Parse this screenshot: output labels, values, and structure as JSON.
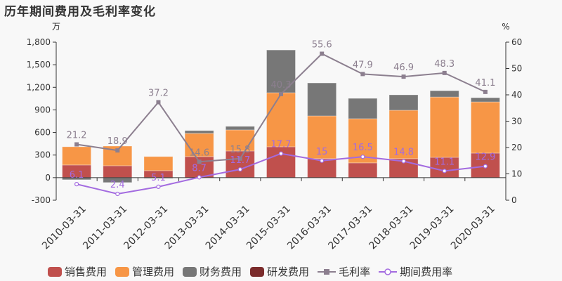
{
  "title": "历年期间费用及毛利率变化",
  "chart_data": {
    "type": "bar",
    "title": "历年期间费用及毛利率变化",
    "xlabel": "",
    "ylabel": "万",
    "y2label": "%",
    "ylim": [
      -300,
      1800
    ],
    "y2lim": [
      0,
      60
    ],
    "yticks": [
      -300,
      0,
      300,
      600,
      900,
      1200,
      1500,
      1800
    ],
    "ytick_labels": [
      "-300",
      "0",
      "300",
      "600",
      "900",
      "1,200",
      "1,500",
      "1,800"
    ],
    "y2ticks": [
      0,
      10,
      20,
      30,
      40,
      50,
      60
    ],
    "categories": [
      "2010-03-31",
      "2011-03-31",
      "2012-03-31",
      "2013-03-31",
      "2014-03-31",
      "2015-03-31",
      "2016-03-31",
      "2017-03-31",
      "2018-03-31",
      "2019-03-31",
      "2020-03-31"
    ],
    "series": [
      {
        "name": "销售费用",
        "type": "bar",
        "stack": "fee",
        "axis": "left",
        "color": "#c0504d",
        "values": [
          168,
          158,
          93,
          280,
          354,
          410,
          252,
          196,
          252,
          270,
          326
        ]
      },
      {
        "name": "管理费用",
        "type": "bar",
        "stack": "fee",
        "axis": "left",
        "color": "#f79646",
        "values": [
          242,
          261,
          187,
          308,
          280,
          718,
          568,
          587,
          643,
          801,
          680
        ]
      },
      {
        "name": "财务费用",
        "type": "bar",
        "stack": "fee",
        "axis": "left",
        "color": "#777777",
        "values": [
          -28,
          -65,
          -10,
          37,
          47,
          568,
          438,
          270,
          205,
          84,
          56
        ]
      },
      {
        "name": "研发费用",
        "type": "bar",
        "stack": "fee",
        "axis": "left",
        "color": "#7b2c2c",
        "values": [
          0,
          0,
          0,
          0,
          0,
          0,
          0,
          0,
          0,
          0,
          0
        ]
      },
      {
        "name": "毛利率",
        "type": "line",
        "axis": "right",
        "color": "#8c7f8f",
        "marker": "square",
        "values": [
          21.2,
          18.9,
          37.2,
          14.6,
          15.8,
          40.3,
          55.6,
          47.9,
          46.9,
          48.3,
          41.1
        ]
      },
      {
        "name": "期间费用率",
        "type": "line",
        "axis": "right",
        "color": "#a36be0",
        "marker": "circle-hollow",
        "values": [
          6.1,
          2.4,
          5.1,
          8.7,
          11.7,
          17.7,
          15,
          16.5,
          14.8,
          11.1,
          12.9
        ]
      }
    ],
    "legend_position": "bottom",
    "grid": false
  },
  "legend": [
    {
      "label": "销售费用",
      "color": "#c0504d",
      "kind": "box"
    },
    {
      "label": "管理费用",
      "color": "#f79646",
      "kind": "box"
    },
    {
      "label": "财务费用",
      "color": "#777777",
      "kind": "box"
    },
    {
      "label": "研发费用",
      "color": "#7b2c2c",
      "kind": "box"
    },
    {
      "label": "毛利率",
      "color": "#8c7f8f",
      "kind": "line-square"
    },
    {
      "label": "期间费用率",
      "color": "#a36be0",
      "kind": "line-circle"
    }
  ]
}
